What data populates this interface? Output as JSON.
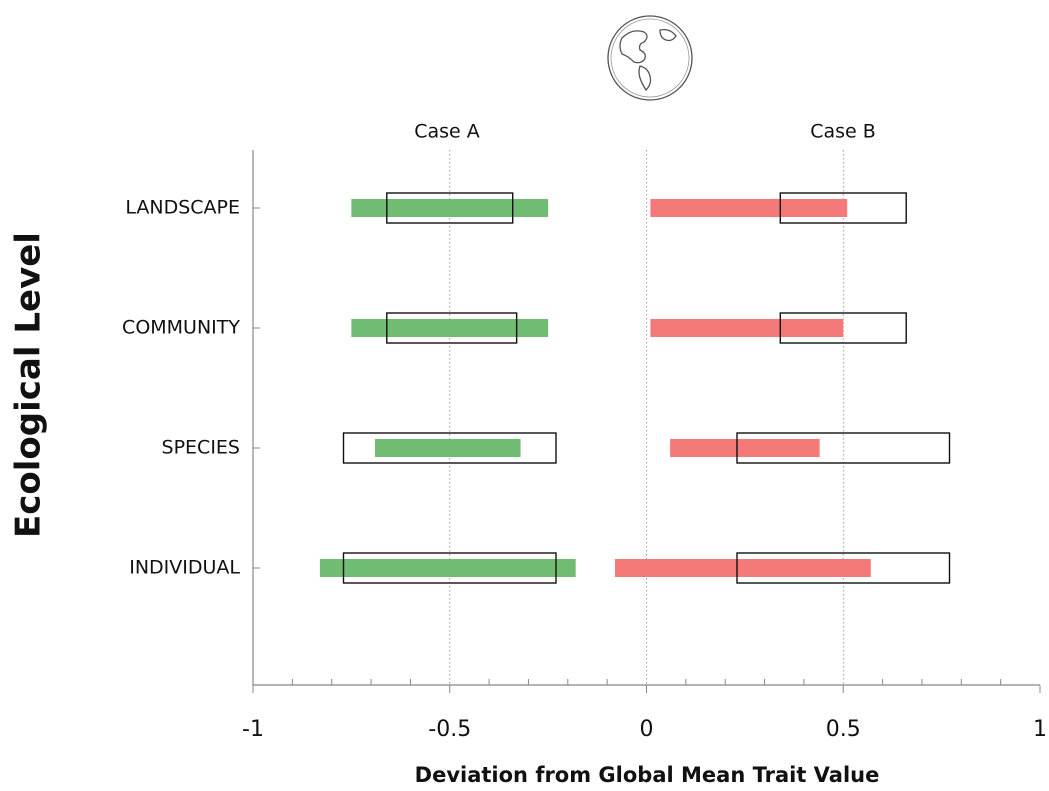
{
  "chart_data": {
    "type": "range-bar",
    "x_label": "Deviation from Global Mean Trait Value",
    "y_label": "Ecological Level",
    "categories": [
      "LANDSCAPE",
      "COMMUNITY",
      "SPECIES",
      "INDIVIDUAL"
    ],
    "series": [
      {
        "name": "Case A",
        "color": "#72bb72",
        "low": [
          -0.75,
          -0.75,
          -0.69,
          -0.83
        ],
        "high": [
          -0.25,
          -0.25,
          -0.32,
          -0.18
        ],
        "box_low": [
          -0.66,
          -0.66,
          -0.77,
          -0.77
        ],
        "box_high": [
          -0.34,
          -0.33,
          -0.23,
          -0.23
        ]
      },
      {
        "name": "Case B",
        "color": "#f47a7a",
        "low": [
          0.01,
          0.01,
          0.06,
          -0.08
        ],
        "high": [
          0.51,
          0.5,
          0.44,
          0.57
        ],
        "box_low": [
          0.34,
          0.34,
          0.23,
          0.23
        ],
        "box_high": [
          0.66,
          0.66,
          0.77,
          0.77
        ]
      }
    ],
    "xlim": [
      -1,
      1
    ],
    "xticks": [
      -1,
      -0.5,
      0,
      0.5,
      1
    ],
    "minor_xticks": [
      -0.9,
      -0.8,
      -0.7,
      -0.6,
      -0.4,
      -0.3,
      -0.2,
      -0.1,
      0.1,
      0.2,
      0.3,
      0.4,
      0.6,
      0.7,
      0.8,
      0.9
    ],
    "grid": true
  }
}
